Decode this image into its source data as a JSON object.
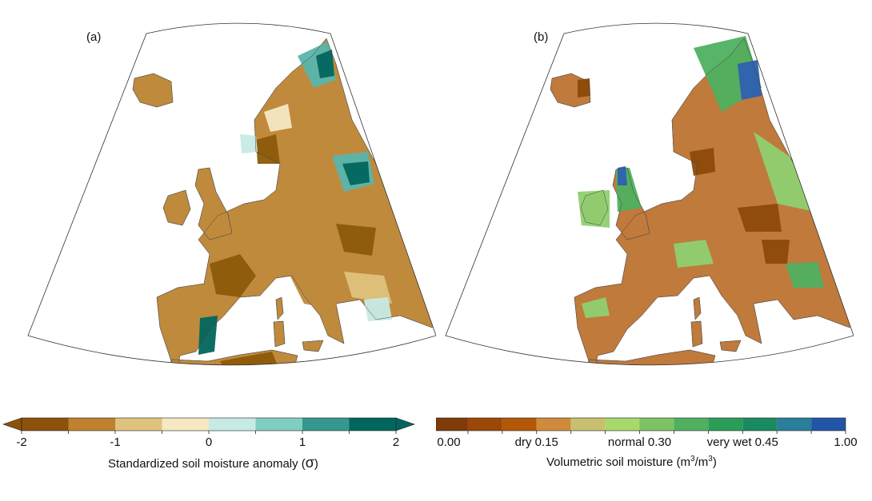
{
  "panels": [
    {
      "label": "(a)",
      "land_colors": {
        "dry_dark": "#8c5a0a",
        "dry_mid": "#bf8a3c",
        "dry_light": "#dfc27d",
        "near_zero": "#f6e8c3",
        "wet_light": "#c7eae5",
        "wet_mid": "#5ab4ac",
        "wet_dark": "#01665e"
      }
    },
    {
      "label": "(b)",
      "land_colors": {
        "dry_dark": "#8c4a0a",
        "dry_mid": "#bf7a3c",
        "normal": "#8fd070",
        "green": "#4fb060",
        "wet": "#1f8f60",
        "very_wet": "#2e60b0"
      }
    }
  ],
  "colorbars": [
    {
      "title_main": "Standardized soil moisture anomaly (",
      "title_symbol": "σ",
      "title_end": ")",
      "colors": [
        "#8c510a",
        "#bf812d",
        "#dfc27d",
        "#f6e8c3",
        "#c7eae5",
        "#80cdc1",
        "#35978f",
        "#01665e"
      ],
      "under_color": "#8c510a",
      "over_color": "#01665e",
      "bounds": [
        -2,
        -1.5,
        -1,
        -0.5,
        0,
        0.5,
        1,
        1.5,
        2
      ],
      "tick_labels": [
        {
          "value": -2,
          "text": "-2"
        },
        {
          "value": -1,
          "text": "-1"
        },
        {
          "value": 0,
          "text": "0"
        },
        {
          "value": 1,
          "text": "1"
        },
        {
          "value": 2,
          "text": "2"
        }
      ]
    },
    {
      "title_main": "Volumetric soil moisture (m",
      "title_sup1": "3",
      "title_mid": "/m",
      "title_sup2": "3",
      "title_end": ")",
      "colors": [
        "#7f3b08",
        "#9a4708",
        "#b35806",
        "#cf8a3c",
        "#c8c070",
        "#a6d96a",
        "#7fc264",
        "#4fb060",
        "#2a9e58",
        "#1a8a60",
        "#2a7f9a",
        "#2255a8"
      ],
      "bounds": [
        0,
        0.05,
        0.1,
        0.15,
        0.2,
        0.25,
        0.3,
        0.35,
        0.4,
        0.45,
        0.5,
        0.75,
        1.0
      ],
      "tick_labels": [
        {
          "index": 0,
          "text": "0.00"
        },
        {
          "index": 3,
          "text": "dry 0.15"
        },
        {
          "index": 6,
          "text": "normal 0.30"
        },
        {
          "index": 9,
          "text": "very wet 0.45"
        },
        {
          "index": 12,
          "text": "1.00"
        }
      ]
    }
  ]
}
